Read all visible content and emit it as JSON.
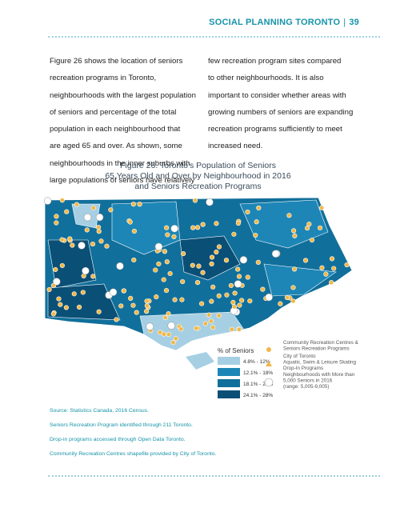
{
  "header": {
    "title": "SOCIAL PLANNING TORONTO",
    "separator": "|",
    "page": "39"
  },
  "body": {
    "left_lines": [
      "Figure 26 shows the location of seniors",
      "recreation programs in Toronto,",
      "neighbourhoods with the largest population",
      "of seniors and percentage of the total",
      "population in each neighbourhood that",
      "are aged 65 and over. As shown, some",
      "neighbourhoods in the inner suburbs with",
      "large populations of seniors have relatively"
    ],
    "right_lines": [
      "few recreation program sites compared",
      "to other neighbourhoods. It is also",
      "important to consider whether areas with",
      "growing numbers of seniors are expanding",
      "recreation programs sufficiently to meet",
      "increased need."
    ]
  },
  "figure": {
    "title_lines": [
      "Figure 26. Toronto's Population of Seniors",
      "65 Years Old and Over by Neighbourhood in 2016",
      "and Seniors Recreation Programs"
    ],
    "legend": {
      "title": "% of Seniors",
      "ranges": [
        "4.8% - 12%",
        "12.1% - 18%",
        "18.1% - 24%",
        "24.1% - 28%"
      ],
      "symbols": [
        [
          "Community Recreation Centres &",
          "Seniors Recreation Programs"
        ],
        [
          "City of Toronto",
          "Aquatic, Swim & Leisure Skating",
          "Drop-In Programs"
        ],
        [
          "Neighbourhoods with More than",
          "5,000 Seniors in 2016",
          "(range: 5,005-9,005)"
        ]
      ]
    }
  },
  "sources": [
    "Source: Statistics Canada, 2016 Census.",
    "Seniors Recreation Program identified through 211 Toronto.",
    "Drop-in programs accessed through Open Data Toronto.",
    "Community Recreation Centres shapefile provided by City of Toronto."
  ]
}
